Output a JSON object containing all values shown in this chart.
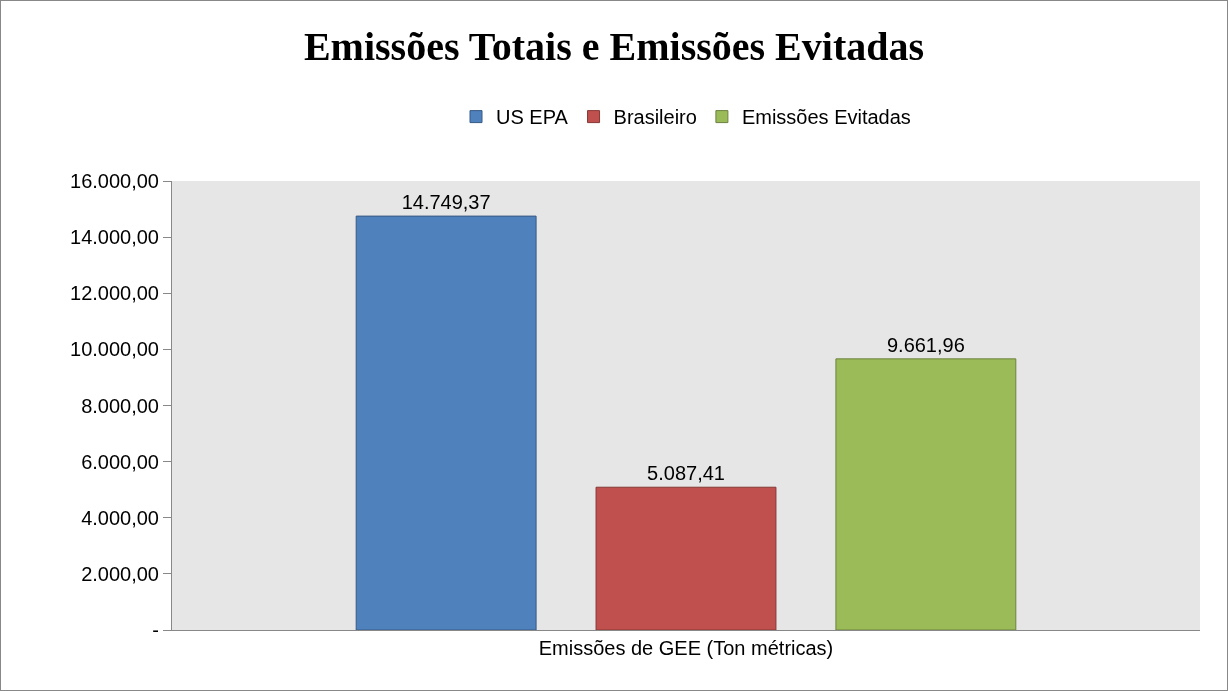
{
  "chart_data": {
    "type": "bar",
    "title": "Emissões Totais e Emissões Evitadas",
    "categories": [
      "Emissões de GEE (Ton métricas)"
    ],
    "series": [
      {
        "name": "US EPA",
        "color": "#4f81bd",
        "values": [
          14749.37
        ],
        "value_labels": [
          "14.749,37"
        ]
      },
      {
        "name": "Brasileiro",
        "color": "#c0504d",
        "values": [
          5087.41
        ],
        "value_labels": [
          "5.087,41"
        ]
      },
      {
        "name": "Emissões Evitadas",
        "color": "#9bbb59",
        "values": [
          9661.96
        ],
        "value_labels": [
          "9.661,96"
        ]
      }
    ],
    "ylim": [
      0,
      16000
    ],
    "yticks": [
      {
        "value": 0,
        "label": "-"
      },
      {
        "value": 2000,
        "label": "2.000,00"
      },
      {
        "value": 4000,
        "label": "4.000,00"
      },
      {
        "value": 6000,
        "label": "6.000,00"
      },
      {
        "value": 8000,
        "label": "8.000,00"
      },
      {
        "value": 10000,
        "label": "10.000,00"
      },
      {
        "value": 12000,
        "label": "12.000,00"
      },
      {
        "value": 14000,
        "label": "14.000,00"
      },
      {
        "value": 16000,
        "label": "16.000,00"
      }
    ],
    "grid": false,
    "legend": "top"
  }
}
